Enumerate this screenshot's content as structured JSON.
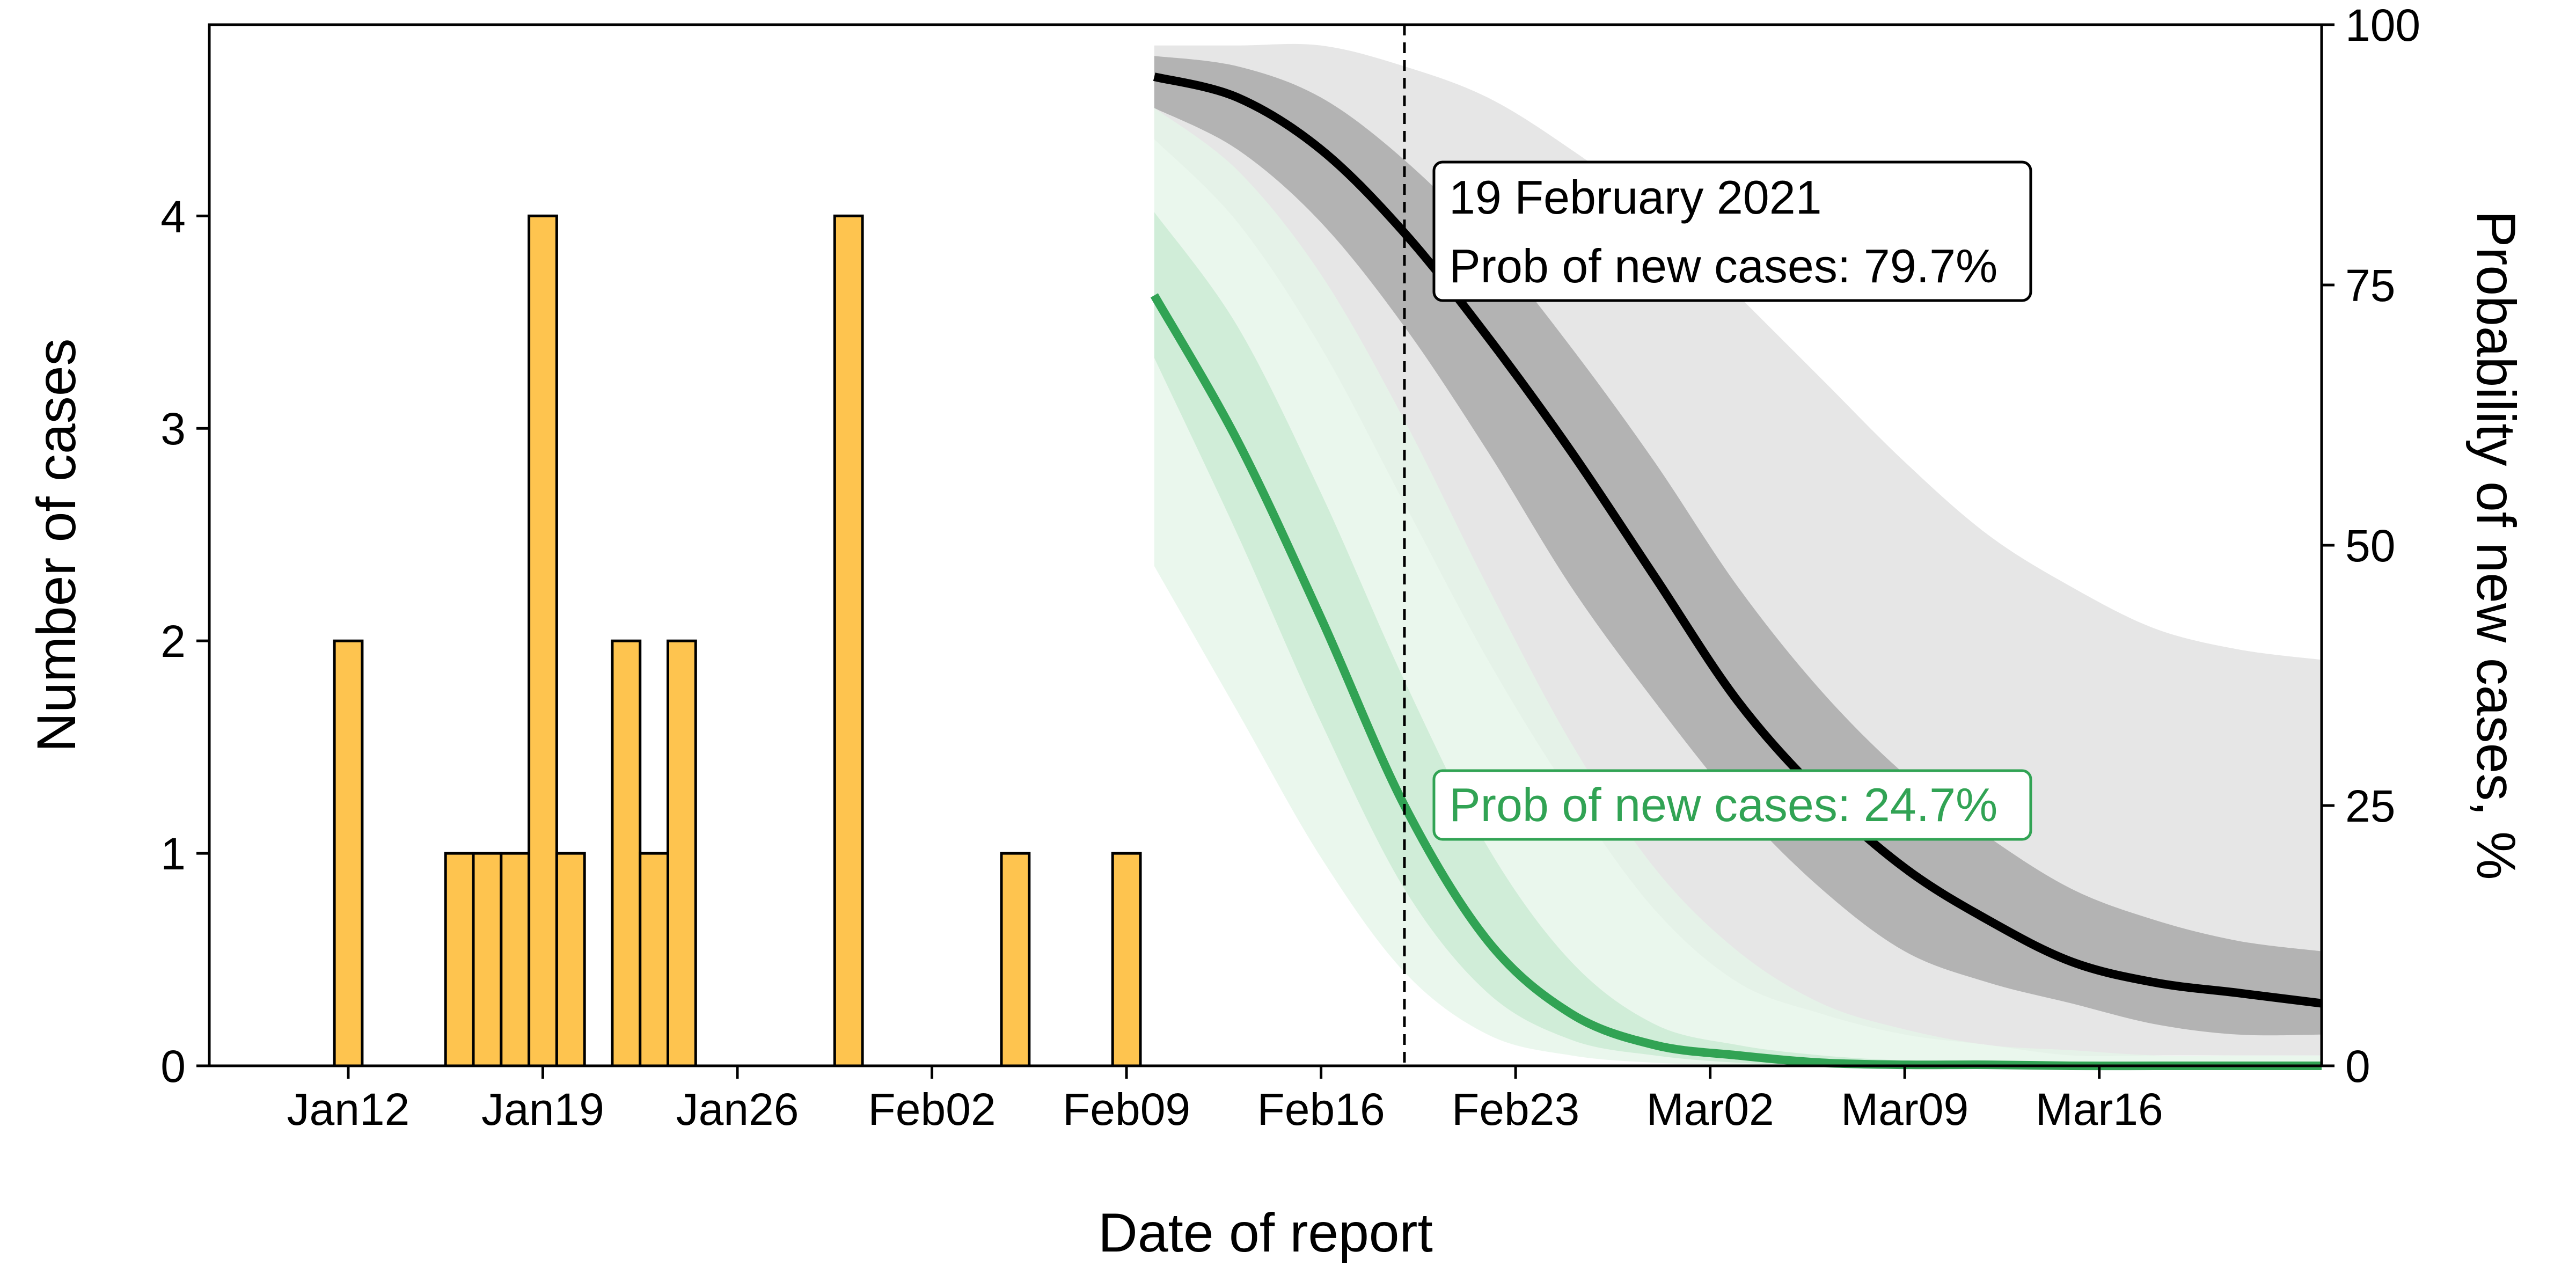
{
  "chart_data": {
    "type": "bar+line",
    "xlabel": "Date of report",
    "ylabel_left": "Number of cases",
    "ylabel_right": "Probability of new cases, %",
    "x_range": [
      "2021-01-07",
      "2021-03-24"
    ],
    "x_ticks": [
      {
        "date": "2021-01-12",
        "label": "Jan12"
      },
      {
        "date": "2021-01-19",
        "label": "Jan19"
      },
      {
        "date": "2021-01-26",
        "label": "Jan26"
      },
      {
        "date": "2021-02-02",
        "label": "Feb02"
      },
      {
        "date": "2021-02-09",
        "label": "Feb09"
      },
      {
        "date": "2021-02-16",
        "label": "Feb16"
      },
      {
        "date": "2021-02-23",
        "label": "Feb23"
      },
      {
        "date": "2021-03-02",
        "label": "Mar02"
      },
      {
        "date": "2021-03-09",
        "label": "Mar09"
      },
      {
        "date": "2021-03-16",
        "label": "Mar16"
      }
    ],
    "y_left": {
      "range": [
        0,
        4.9
      ],
      "ticks": [
        0,
        1,
        2,
        3,
        4
      ]
    },
    "y_right": {
      "range": [
        0,
        100
      ],
      "ticks": [
        0,
        25,
        50,
        75,
        100
      ]
    },
    "bars": {
      "color": "#FEC44F",
      "values": [
        {
          "date": "2021-01-12",
          "cases": 2
        },
        {
          "date": "2021-01-16",
          "cases": 1
        },
        {
          "date": "2021-01-17",
          "cases": 1
        },
        {
          "date": "2021-01-18",
          "cases": 1
        },
        {
          "date": "2021-01-19",
          "cases": 4
        },
        {
          "date": "2021-01-20",
          "cases": 1
        },
        {
          "date": "2021-01-22",
          "cases": 2
        },
        {
          "date": "2021-01-23",
          "cases": 1
        },
        {
          "date": "2021-01-24",
          "cases": 2
        },
        {
          "date": "2021-01-30",
          "cases": 4
        },
        {
          "date": "2021-02-05",
          "cases": 1
        },
        {
          "date": "2021-02-09",
          "cases": 1
        }
      ]
    },
    "projection_dates": [
      "2021-02-10",
      "2021-02-13",
      "2021-02-16",
      "2021-02-19",
      "2021-02-22",
      "2021-02-25",
      "2021-02-28",
      "2021-03-03",
      "2021-03-06",
      "2021-03-09",
      "2021-03-12",
      "2021-03-15",
      "2021-03-18",
      "2021-03-21",
      "2021-03-24"
    ],
    "series": [
      {
        "color": "#000000",
        "band_outer_color": "#E6E6E6",
        "band_inner_color": "#B3B3B3",
        "median": [
          95,
          93,
          88,
          80,
          70,
          59,
          47,
          35,
          26,
          19,
          14,
          10,
          8,
          7,
          6
        ],
        "inner_low": [
          92,
          88,
          81,
          71,
          59,
          46,
          35,
          25,
          17,
          11,
          8,
          6,
          4,
          3,
          3
        ],
        "inner_high": [
          97,
          96,
          93,
          87,
          79,
          69,
          58,
          46,
          36,
          28,
          22,
          17,
          14,
          12,
          11
        ],
        "outer_low": [
          89,
          81,
          69,
          54,
          39,
          26,
          15,
          8,
          5,
          3,
          2,
          1,
          1,
          1,
          1
        ],
        "outer_high": [
          98,
          98,
          98,
          96,
          93,
          88,
          82,
          74,
          66,
          58,
          51,
          46,
          42,
          40,
          39
        ]
      },
      {
        "color": "#31A354",
        "band_outer_color": "#E5F5E9",
        "band_inner_color": "#C7E9D0",
        "median": [
          74,
          60,
          43,
          25,
          12,
          5,
          2,
          1,
          0.3,
          0.1,
          0.1,
          0,
          0,
          0,
          0
        ],
        "inner_low": [
          68,
          51,
          33,
          17,
          7,
          2.5,
          1,
          0.3,
          0.1,
          0,
          0,
          0,
          0,
          0,
          0
        ],
        "inner_high": [
          82,
          71,
          55,
          37,
          21,
          10,
          4,
          2,
          1,
          0.5,
          0.3,
          0.2,
          0.1,
          0.1,
          0.1
        ],
        "outer_low": [
          48,
          34,
          20,
          9,
          3,
          1,
          0.3,
          0.1,
          0,
          0,
          0,
          0,
          0,
          0,
          0
        ],
        "outer_high": [
          92,
          86,
          76,
          62,
          46,
          31,
          19,
          11,
          6,
          3.5,
          2,
          1.5,
          1,
          1,
          1
        ]
      }
    ],
    "reference_line": {
      "date": "2021-02-19",
      "style": "dashed",
      "color": "#000000"
    },
    "annotations": [
      {
        "color": "#000000",
        "lines": [
          "19 February 2021",
          "Prob of new cases: 79.7%"
        ]
      },
      {
        "color": "#31A354",
        "lines": [
          "Prob of new cases: 24.7%"
        ]
      }
    ]
  }
}
